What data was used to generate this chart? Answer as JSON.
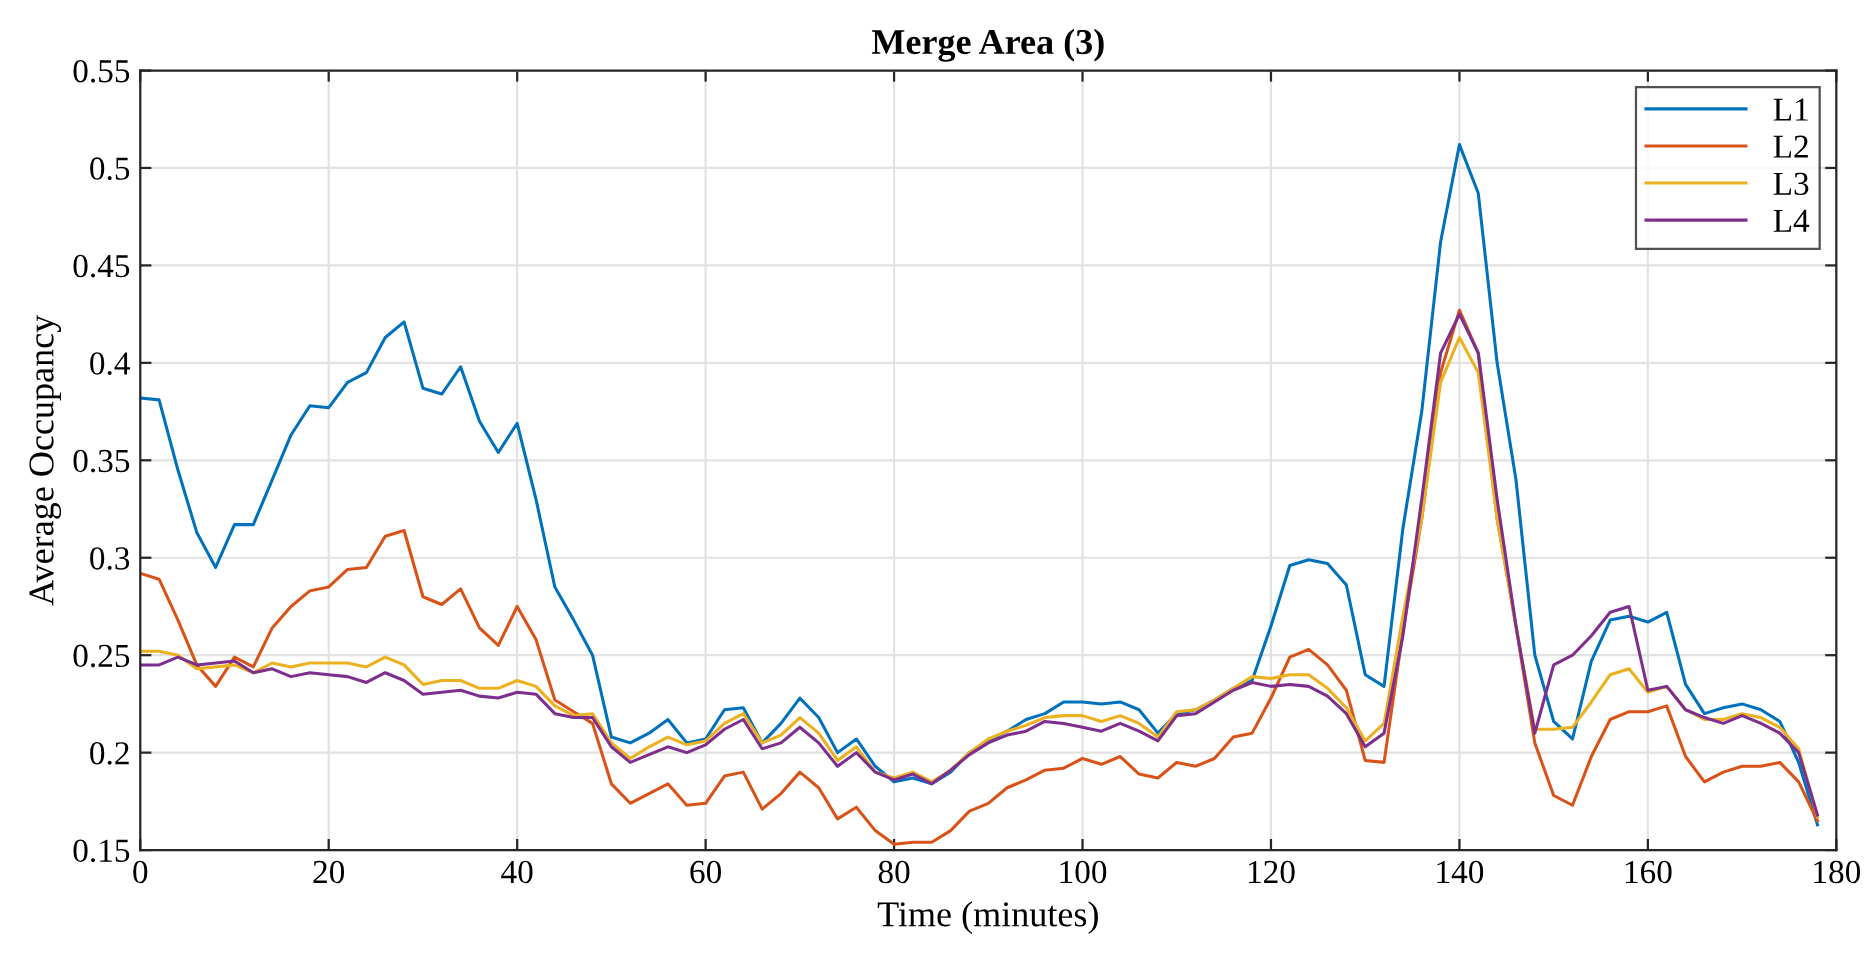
{
  "chart_data": {
    "type": "line",
    "title": "Merge Area (3)",
    "xlabel": "Time (minutes)",
    "ylabel": "Average Occupancy",
    "x": [
      0,
      2,
      4,
      6,
      8,
      10,
      12,
      14,
      16,
      18,
      20,
      22,
      24,
      26,
      28,
      30,
      32,
      34,
      36,
      38,
      40,
      42,
      44,
      46,
      48,
      50,
      52,
      54,
      56,
      58,
      60,
      62,
      64,
      66,
      68,
      70,
      72,
      74,
      76,
      78,
      80,
      82,
      84,
      86,
      88,
      90,
      92,
      94,
      96,
      98,
      100,
      102,
      104,
      106,
      108,
      110,
      112,
      114,
      116,
      118,
      120,
      122,
      124,
      126,
      128,
      130,
      132,
      134,
      136,
      138,
      140,
      142,
      144,
      146,
      148,
      150,
      152,
      154,
      156,
      158,
      160,
      162,
      164,
      166,
      168,
      170,
      172,
      174,
      176,
      178
    ],
    "series": [
      {
        "name": "L1",
        "color": "#0072bd",
        "values": [
          0.382,
          0.381,
          0.345,
          0.313,
          0.295,
          0.317,
          0.317,
          0.34,
          0.363,
          0.378,
          0.377,
          0.39,
          0.395,
          0.413,
          0.421,
          0.387,
          0.384,
          0.398,
          0.37,
          0.354,
          0.369,
          0.33,
          0.285,
          0.268,
          0.25,
          0.208,
          0.205,
          0.21,
          0.217,
          0.205,
          0.207,
          0.222,
          0.223,
          0.205,
          0.215,
          0.228,
          0.218,
          0.2,
          0.207,
          0.193,
          0.185,
          0.187,
          0.184,
          0.19,
          0.2,
          0.206,
          0.211,
          0.217,
          0.22,
          0.226,
          0.226,
          0.225,
          0.226,
          0.222,
          0.21,
          0.22,
          0.222,
          0.227,
          0.233,
          0.237,
          0.265,
          0.296,
          0.299,
          0.297,
          0.286,
          0.24,
          0.234,
          0.315,
          0.375,
          0.462,
          0.512,
          0.487,
          0.4,
          0.34,
          0.25,
          0.216,
          0.207,
          0.247,
          0.268,
          0.27,
          0.267,
          0.272,
          0.235,
          0.22,
          0.223,
          0.225,
          0.222,
          0.216,
          0.195,
          0.163
        ]
      },
      {
        "name": "L2",
        "color": "#d95319",
        "values": [
          0.292,
          0.289,
          0.268,
          0.245,
          0.234,
          0.249,
          0.244,
          0.264,
          0.275,
          0.283,
          0.285,
          0.294,
          0.295,
          0.311,
          0.314,
          0.28,
          0.276,
          0.284,
          0.264,
          0.255,
          0.275,
          0.258,
          0.227,
          0.221,
          0.215,
          0.184,
          0.174,
          0.179,
          0.184,
          0.173,
          0.174,
          0.188,
          0.19,
          0.171,
          0.179,
          0.19,
          0.182,
          0.166,
          0.172,
          0.16,
          0.153,
          0.154,
          0.154,
          0.16,
          0.17,
          0.174,
          0.182,
          0.186,
          0.191,
          0.192,
          0.197,
          0.194,
          0.198,
          0.189,
          0.187,
          0.195,
          0.193,
          0.197,
          0.208,
          0.21,
          0.228,
          0.249,
          0.253,
          0.245,
          0.232,
          0.196,
          0.195,
          0.262,
          0.32,
          0.395,
          0.427,
          0.405,
          0.32,
          0.265,
          0.205,
          0.178,
          0.173,
          0.198,
          0.217,
          0.221,
          0.221,
          0.224,
          0.198,
          0.185,
          0.19,
          0.193,
          0.193,
          0.195,
          0.185,
          0.165
        ]
      },
      {
        "name": "L3",
        "color": "#edb120",
        "values": [
          0.252,
          0.252,
          0.25,
          0.243,
          0.244,
          0.245,
          0.241,
          0.246,
          0.244,
          0.246,
          0.246,
          0.246,
          0.244,
          0.249,
          0.245,
          0.235,
          0.237,
          0.237,
          0.233,
          0.233,
          0.237,
          0.234,
          0.224,
          0.219,
          0.22,
          0.205,
          0.197,
          0.203,
          0.208,
          0.204,
          0.206,
          0.215,
          0.22,
          0.205,
          0.209,
          0.218,
          0.21,
          0.196,
          0.203,
          0.19,
          0.187,
          0.19,
          0.185,
          0.191,
          0.2,
          0.207,
          0.211,
          0.214,
          0.218,
          0.219,
          0.219,
          0.216,
          0.219,
          0.215,
          0.208,
          0.221,
          0.222,
          0.227,
          0.233,
          0.239,
          0.238,
          0.24,
          0.24,
          0.233,
          0.223,
          0.206,
          0.215,
          0.27,
          0.32,
          0.39,
          0.413,
          0.395,
          0.32,
          0.265,
          0.212,
          0.212,
          0.213,
          0.226,
          0.24,
          0.243,
          0.231,
          0.234,
          0.222,
          0.217,
          0.217,
          0.22,
          0.218,
          0.213,
          0.202,
          0.167
        ]
      },
      {
        "name": "L4",
        "color": "#7e2f8e",
        "values": [
          0.245,
          0.245,
          0.249,
          0.245,
          0.246,
          0.247,
          0.241,
          0.243,
          0.239,
          0.241,
          0.24,
          0.239,
          0.236,
          0.241,
          0.237,
          0.23,
          0.231,
          0.232,
          0.229,
          0.228,
          0.231,
          0.23,
          0.22,
          0.218,
          0.218,
          0.203,
          0.195,
          0.199,
          0.203,
          0.2,
          0.204,
          0.212,
          0.217,
          0.202,
          0.205,
          0.213,
          0.205,
          0.193,
          0.2,
          0.19,
          0.186,
          0.189,
          0.184,
          0.191,
          0.199,
          0.205,
          0.209,
          0.211,
          0.216,
          0.215,
          0.213,
          0.211,
          0.215,
          0.211,
          0.206,
          0.219,
          0.22,
          0.226,
          0.232,
          0.236,
          0.234,
          0.235,
          0.234,
          0.229,
          0.22,
          0.203,
          0.21,
          0.26,
          0.33,
          0.405,
          0.425,
          0.405,
          0.33,
          0.265,
          0.21,
          0.245,
          0.25,
          0.26,
          0.272,
          0.275,
          0.232,
          0.234,
          0.222,
          0.218,
          0.215,
          0.219,
          0.215,
          0.21,
          0.2,
          0.168
        ]
      }
    ],
    "xlim": [
      0,
      180
    ],
    "xticks": [
      0,
      20,
      40,
      60,
      80,
      100,
      120,
      140,
      160,
      180
    ],
    "ylim": [
      0.15,
      0.55
    ],
    "yticks": [
      0.15,
      0.2,
      0.25,
      0.3,
      0.35,
      0.4,
      0.45,
      0.5,
      0.55
    ],
    "grid": true,
    "legend": "top right",
    "marker": "none",
    "line_style": "solid"
  }
}
